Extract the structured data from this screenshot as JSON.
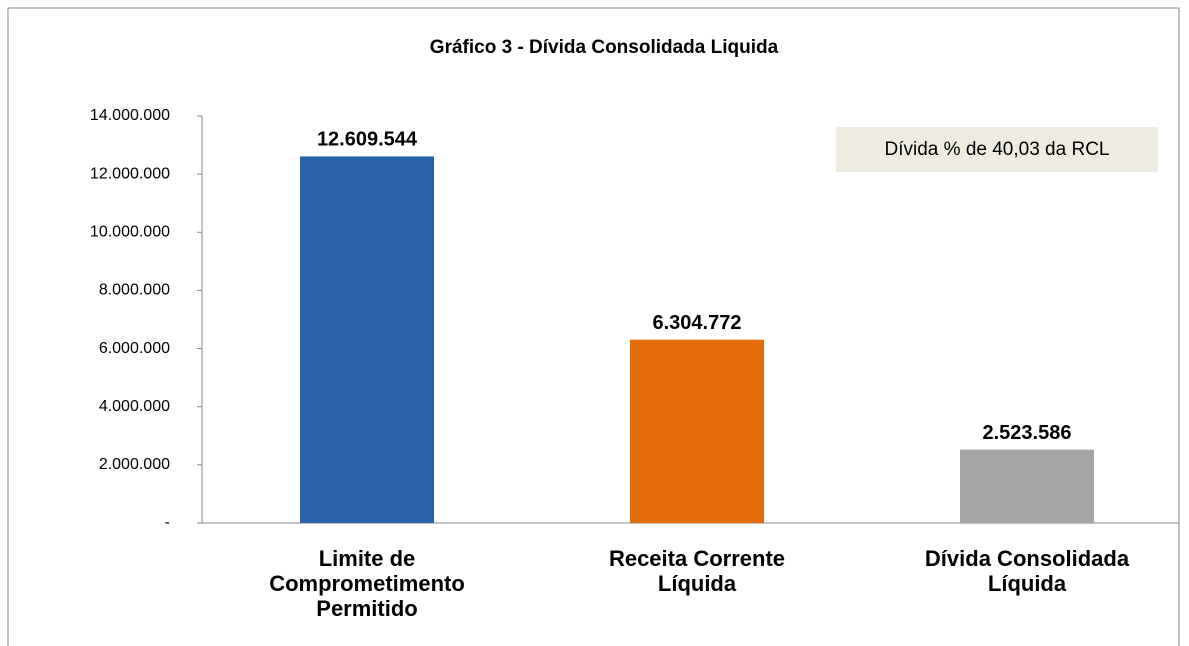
{
  "chart_data": {
    "type": "bar",
    "title": "Gráfico 3 - Dívida Consolidada Liquida",
    "categories": [
      "Limite de Comprometimento Permitido",
      "Receita Corrente Líquida",
      "Dívida Consolidada Líquida"
    ],
    "values": [
      12609544,
      6304772,
      2523586
    ],
    "value_labels": [
      "12.609.544",
      "6.304.772",
      "2.523.586"
    ],
    "colors": [
      "#2a62a8",
      "#e46c0a",
      "#a5a5a5"
    ],
    "ylim": [
      0,
      14000000
    ],
    "yticks": [
      {
        "value": 0,
        "label": "-"
      },
      {
        "value": 2000000,
        "label": "2.000.000"
      },
      {
        "value": 4000000,
        "label": "4.000.000"
      },
      {
        "value": 6000000,
        "label": "6.000.000"
      },
      {
        "value": 8000000,
        "label": "8.000.000"
      },
      {
        "value": 10000000,
        "label": "10.000.000"
      },
      {
        "value": 12000000,
        "label": "12.000.000"
      },
      {
        "value": 14000000,
        "label": "14.000.000"
      }
    ],
    "annotation": "Dívida % de 40,03 da RCL",
    "grid": false
  }
}
